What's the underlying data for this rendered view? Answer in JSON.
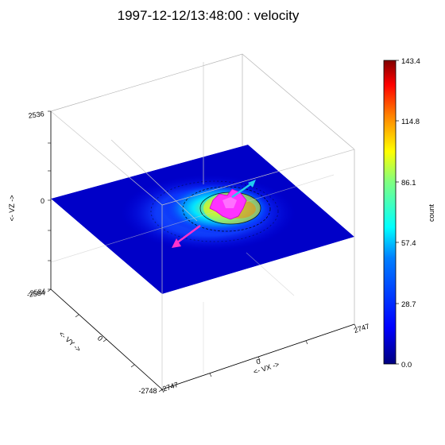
{
  "chart_data": {
    "type": "heatmap",
    "title": "1997-12-12/13:48:00 : velocity",
    "axes": {
      "vx": {
        "label": "<- VX ->",
        "ticks": [
          "0",
          "2747",
          "-2747"
        ]
      },
      "vy": {
        "label": "<- VY ->",
        "ticks": [
          "0",
          "-2748"
        ]
      },
      "vz": {
        "label": "<- VZ ->",
        "ticks": [
          "2536",
          "0",
          "-2584",
          "-2584"
        ]
      }
    },
    "colorbar": {
      "label": "count",
      "range": [
        0.0,
        143.4
      ],
      "ticks": [
        "143.4",
        "114.8",
        "86.1",
        "57.4",
        "28.7",
        "0.0"
      ],
      "colors": [
        "#000080",
        "#0000ff",
        "#0080ff",
        "#00ffff",
        "#80ff80",
        "#ffff00",
        "#ff8000",
        "#ff0000",
        "#800000"
      ]
    },
    "slice_plane": "VZ = 0",
    "isosurface_color": "#ff33ff",
    "vector_colors": [
      "#22ccee",
      "#ff33cc"
    ]
  }
}
